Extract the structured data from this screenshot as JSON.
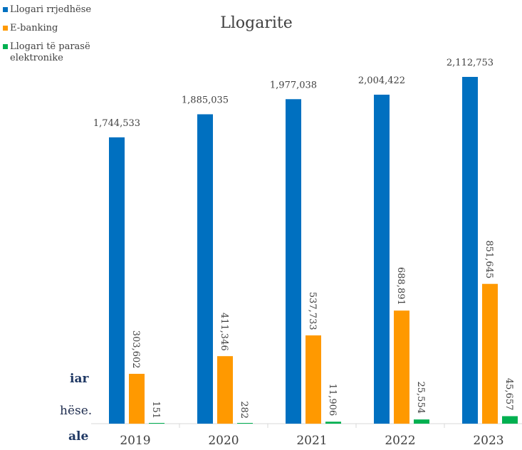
{
  "chart_data": {
    "type": "bar",
    "title": "Llogarite",
    "categories": [
      "2019",
      "2020",
      "2021",
      "2022",
      "2023"
    ],
    "series": [
      {
        "name": "Llogari rrjedhëse",
        "color": "#0070C0",
        "values": [
          1744533,
          1885035,
          1977038,
          2004422,
          2112753
        ],
        "labels": [
          "1,744,533",
          "1,885,035",
          "1,977,038",
          "2,004,422",
          "2,112,753"
        ]
      },
      {
        "name": "E-banking",
        "color": "#FF9900",
        "values": [
          303602,
          411346,
          537733,
          688891,
          851645
        ],
        "labels": [
          "303,602",
          "411,346",
          "537,733",
          "688,891",
          "851,645"
        ]
      },
      {
        "name": "Llogari të parasë elektronike",
        "color": "#00B050",
        "values": [
          151,
          282,
          11906,
          25554,
          45657
        ],
        "labels": [
          "151",
          "282",
          "11,906",
          "25,554",
          "45,657"
        ]
      }
    ],
    "ylim": [
      0,
      2112753
    ],
    "grid": false,
    "legend_position": "top-left"
  },
  "side_text": {
    "line1": "iar",
    "line2": "hëse.",
    "line3": "ale"
  }
}
